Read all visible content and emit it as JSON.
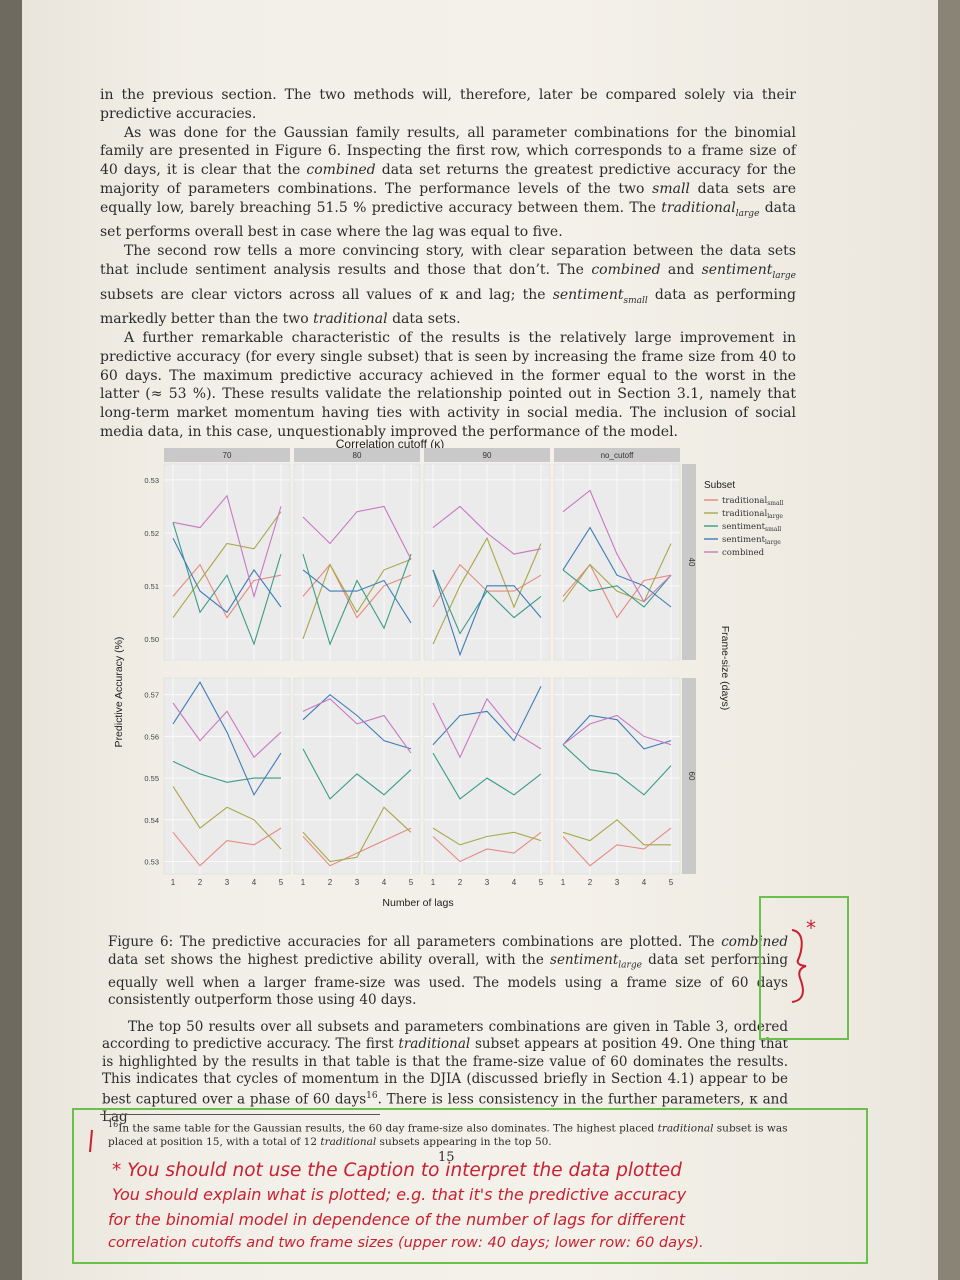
{
  "paragraphs": {
    "p1": "in the previous section. The two methods will, therefore, later be compared solely via their predictive accuracies.",
    "p2a": "As was done for the Gaussian family results, all parameter combinations for the binomial family are presented in Figure 6. Inspecting the first row, which corresponds to a frame size of 40 days, it is clear that the ",
    "p2b": "combined",
    "p2c": " data set returns the greatest predictive accuracy for the majority of parameters combinations. The performance levels of the two ",
    "p2d": "small",
    "p2e": " data sets are equally low, barely breaching 51.5 % predictive accuracy between them. The ",
    "p2f": "traditional",
    "p2g": "large",
    "p2h": " data set performs overall best in case where the lag was equal to five.",
    "p3a": "The second row tells a more convincing story, with clear separation between the data sets that include sentiment analysis results and those that don’t. The ",
    "p3b": "combined",
    "p3c": " and ",
    "p3d": "sentiment",
    "p3e": "large",
    "p3f": " subsets are clear victors across all values of κ and lag; the ",
    "p3g": "sentiment",
    "p3h": "small",
    "p3i": " data as performing markedly better than the two ",
    "p3j": "traditional",
    "p3k": " data sets.",
    "p4": "A further remarkable characteristic of the results is the relatively large improvement in predictive accuracy (for every single subset) that is seen by increasing the frame size from 40 to 60 days. The maximum predictive accuracy achieved in the former equal to the worst in the latter (≈ 53 %). These results validate the relationship pointed out in Section 3.1, namely that long-term market momentum having ties with activity in social media. The inclusion of social media data, in this case, unquestionably improved the performance of the model."
  },
  "caption": {
    "a": "Figure 6: The predictive accuracies for all parameters combinations are plotted. The ",
    "b": "combined",
    "c": " data set shows the highest predictive ability overall, with the ",
    "d": "sentiment",
    "e": "large",
    "f": " data set performing equally well when a larger frame-size was used. The models using a frame size of 60 days consistently outperform those using 40 days."
  },
  "bottom": {
    "a": "The top 50 results over all subsets and parameters combinations are given in Table 3, ordered according to predictive accuracy. The first ",
    "b": "traditional",
    "c": " subset appears at position 49. One thing that is highlighted by the results in that table is that the frame-size value of 60 dominates the results. This indicates that cycles of momentum in the DJIA (discussed briefly in Section 4.1) appear to be best captured over a phase of 60 days",
    "d": "16",
    "e": ". There is less consistency in the further parameters, κ and Lag"
  },
  "footnote": {
    "num": "16",
    "a": "In the same table for the Gaussian results, the 60 day frame-size also dominates. The highest placed ",
    "b": "traditional",
    "c": " subset is was placed at position 15, with a total of 12 ",
    "d": "traditional",
    "e": " subsets appearing in the top 50."
  },
  "page_number": "15",
  "handwriting": {
    "star": "*",
    "line1": "* You should not use the Caption to interpret the data plotted",
    "line2": "You should explain what is plotted; e.g. that it's the predictive accuracy",
    "line3": "for the binomial model in dependence of the number of lags for different",
    "line4": "correlation cutoffs and two frame sizes (upper row: 40 days; lower row: 60 days)."
  },
  "colors": {
    "traditional_small": "#e8897f",
    "traditional_large": "#a8a84a",
    "sentiment_small": "#3b9c86",
    "sentiment_large": "#3f7cb8",
    "combined": "#c978c0",
    "ink_red": "#cc1f2f",
    "highlight_green": "#69c04a"
  },
  "chart_data": {
    "type": "line",
    "title": "Correlation cutoff (κ)",
    "xlabel": "Number of lags",
    "ylabel": "Predictive Accuracy (%)",
    "facet_row_title": "Frame-size (days)",
    "legend_title": "Subset",
    "legend_position": "right",
    "columns": [
      "70",
      "80",
      "90",
      "no_cutoff"
    ],
    "rows": [
      "40",
      "60"
    ],
    "x": [
      1,
      2,
      3,
      4,
      5
    ],
    "x_ticks": [
      "1",
      "2",
      "3",
      "4",
      "5"
    ],
    "row_ylim": {
      "40": [
        0.496,
        0.533
      ],
      "60": [
        0.527,
        0.574
      ]
    },
    "row_yticks": {
      "40": [
        "0.50",
        "0.51",
        "0.52",
        "0.53"
      ],
      "60": [
        "0.53",
        "0.54",
        "0.55",
        "0.56",
        "0.57"
      ]
    },
    "legend": [
      {
        "key": "traditional_small",
        "base": "traditional",
        "sub": "small"
      },
      {
        "key": "traditional_large",
        "base": "traditional",
        "sub": "large"
      },
      {
        "key": "sentiment_small",
        "base": "sentiment",
        "sub": "small"
      },
      {
        "key": "sentiment_large",
        "base": "sentiment",
        "sub": "large"
      },
      {
        "key": "combined",
        "base": "combined",
        "sub": ""
      }
    ],
    "panels": [
      {
        "col": "70",
        "row": "40",
        "series": {
          "traditional_small": [
            0.508,
            0.514,
            0.504,
            0.511,
            0.512
          ],
          "traditional_large": [
            0.504,
            0.511,
            0.518,
            0.517,
            0.524
          ],
          "sentiment_small": [
            0.522,
            0.505,
            0.512,
            0.499,
            0.516
          ],
          "sentiment_large": [
            0.519,
            0.509,
            0.505,
            0.513,
            0.506
          ],
          "combined": [
            0.522,
            0.521,
            0.527,
            0.508,
            0.525
          ]
        }
      },
      {
        "col": "80",
        "row": "40",
        "series": {
          "traditional_small": [
            0.508,
            0.514,
            0.504,
            0.51,
            0.512
          ],
          "traditional_large": [
            0.5,
            0.514,
            0.505,
            0.513,
            0.515
          ],
          "sentiment_small": [
            0.516,
            0.499,
            0.511,
            0.502,
            0.516
          ],
          "sentiment_large": [
            0.513,
            0.509,
            0.509,
            0.511,
            0.503
          ],
          "combined": [
            0.523,
            0.518,
            0.524,
            0.525,
            0.515
          ]
        }
      },
      {
        "col": "90",
        "row": "40",
        "series": {
          "traditional_small": [
            0.506,
            0.514,
            0.509,
            0.509,
            0.512
          ],
          "traditional_large": [
            0.499,
            0.51,
            0.519,
            0.506,
            0.518
          ],
          "sentiment_small": [
            0.513,
            0.501,
            0.509,
            0.504,
            0.508
          ],
          "sentiment_large": [
            0.513,
            0.497,
            0.51,
            0.51,
            0.504
          ],
          "combined": [
            0.521,
            0.525,
            0.52,
            0.516,
            0.517
          ]
        }
      },
      {
        "col": "no_cutoff",
        "row": "40",
        "series": {
          "traditional_small": [
            0.508,
            0.514,
            0.504,
            0.511,
            0.512
          ],
          "traditional_large": [
            0.507,
            0.514,
            0.509,
            0.507,
            0.518
          ],
          "sentiment_small": [
            0.513,
            0.509,
            0.51,
            0.506,
            0.512
          ],
          "sentiment_large": [
            0.513,
            0.521,
            0.512,
            0.51,
            0.506
          ],
          "combined": [
            0.524,
            0.528,
            0.516,
            0.507,
            0.512
          ]
        }
      },
      {
        "col": "70",
        "row": "60",
        "series": {
          "traditional_small": [
            0.537,
            0.529,
            0.535,
            0.534,
            0.538
          ],
          "traditional_large": [
            0.548,
            0.538,
            0.543,
            0.54,
            0.533
          ],
          "sentiment_small": [
            0.554,
            0.551,
            0.549,
            0.55,
            0.55
          ],
          "sentiment_large": [
            0.563,
            0.573,
            0.561,
            0.546,
            0.556
          ],
          "combined": [
            0.568,
            0.559,
            0.566,
            0.555,
            0.561
          ]
        }
      },
      {
        "col": "80",
        "row": "60",
        "series": {
          "traditional_small": [
            0.536,
            0.529,
            0.532,
            0.535,
            0.538
          ],
          "traditional_large": [
            0.537,
            0.53,
            0.531,
            0.543,
            0.537
          ],
          "sentiment_small": [
            0.557,
            0.545,
            0.551,
            0.546,
            0.552
          ],
          "sentiment_large": [
            0.564,
            0.57,
            0.565,
            0.559,
            0.557
          ],
          "combined": [
            0.566,
            0.569,
            0.563,
            0.565,
            0.556
          ]
        }
      },
      {
        "col": "90",
        "row": "60",
        "series": {
          "traditional_small": [
            0.536,
            0.53,
            0.533,
            0.532,
            0.537
          ],
          "traditional_large": [
            0.538,
            0.534,
            0.536,
            0.537,
            0.535
          ],
          "sentiment_small": [
            0.556,
            0.545,
            0.55,
            0.546,
            0.551
          ],
          "sentiment_large": [
            0.558,
            0.565,
            0.566,
            0.559,
            0.572
          ],
          "combined": [
            0.568,
            0.555,
            0.569,
            0.561,
            0.557
          ]
        }
      },
      {
        "col": "no_cutoff",
        "row": "60",
        "series": {
          "traditional_small": [
            0.536,
            0.529,
            0.534,
            0.533,
            0.538
          ],
          "traditional_large": [
            0.537,
            0.535,
            0.54,
            0.534,
            0.534
          ],
          "sentiment_small": [
            0.558,
            0.552,
            0.551,
            0.546,
            0.553
          ],
          "sentiment_large": [
            0.558,
            0.565,
            0.564,
            0.557,
            0.559
          ],
          "combined": [
            0.558,
            0.563,
            0.565,
            0.56,
            0.558
          ]
        }
      }
    ]
  }
}
